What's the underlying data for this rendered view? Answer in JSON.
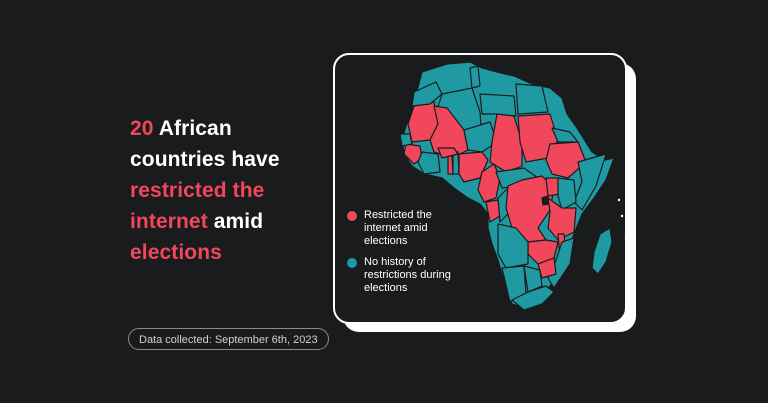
{
  "headline": {
    "count": "20",
    "part1": " African countries have ",
    "highlight1": "restricted the internet",
    "part2": " amid ",
    "highlight2": "elections"
  },
  "legend": {
    "restricted_label": "Restricted the internet amid elections",
    "none_label": "No history of restrictions during elections"
  },
  "footer": {
    "data_collected": "Data collected: September 6th, 2023"
  },
  "colors": {
    "restricted": "#f0475c",
    "none": "#1f9aa3",
    "background": "#1a1b1d",
    "border": "#1a1b1d"
  },
  "map": {
    "type": "choropleth",
    "region": "Africa",
    "restricted_count": 20
  }
}
